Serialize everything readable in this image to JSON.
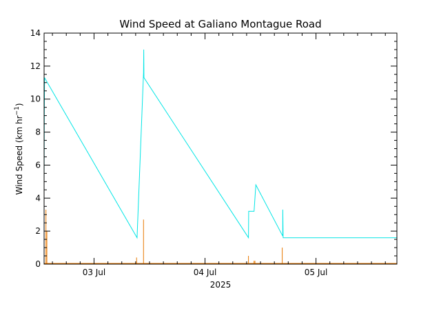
{
  "chart_data": {
    "type": "line",
    "title": "Wind Speed at Galiano Montague Road",
    "ylabel_main": "Wind Speed (km hr",
    "ylabel_sup": "−1",
    "ylabel_close": ")",
    "xlabel": "2025",
    "xlim_hours": [
      -10.8,
      65.5
    ],
    "ylim": [
      0,
      14
    ],
    "y_ticks": [
      0,
      2,
      4,
      6,
      8,
      10,
      12,
      14
    ],
    "x_ticks": [
      {
        "label": "03 Jul",
        "hour": 0
      },
      {
        "label": "04 Jul",
        "hour": 24
      },
      {
        "label": "05 Jul",
        "hour": 48
      }
    ],
    "x_minor_step_hours": 3,
    "series": [
      {
        "color": "#00e5e5",
        "kind": "line",
        "points": [
          [
            -10.8,
            5.0
          ],
          [
            -10.75,
            9.0
          ],
          [
            -10.7,
            11.3
          ],
          [
            -10.5,
            11.2
          ],
          [
            9.3,
            1.6
          ],
          [
            10.7,
            11.6
          ],
          [
            10.75,
            13.0
          ],
          [
            10.8,
            11.3
          ],
          [
            33.4,
            1.6
          ],
          [
            33.45,
            3.2
          ],
          [
            34.6,
            3.2
          ],
          [
            35.0,
            4.8
          ],
          [
            40.8,
            1.7
          ],
          [
            40.82,
            3.3
          ],
          [
            40.9,
            1.6
          ],
          [
            65.5,
            1.6
          ]
        ]
      },
      {
        "color": "#e87800",
        "kind": "spikes",
        "points": [
          [
            -10.4,
            3.3
          ],
          [
            -10.2,
            2.0
          ],
          [
            9.2,
            0.4
          ],
          [
            10.7,
            2.7
          ],
          [
            33.4,
            0.5
          ],
          [
            34.6,
            0.2
          ],
          [
            34.8,
            0.2
          ],
          [
            40.7,
            1.0
          ]
        ]
      }
    ]
  }
}
